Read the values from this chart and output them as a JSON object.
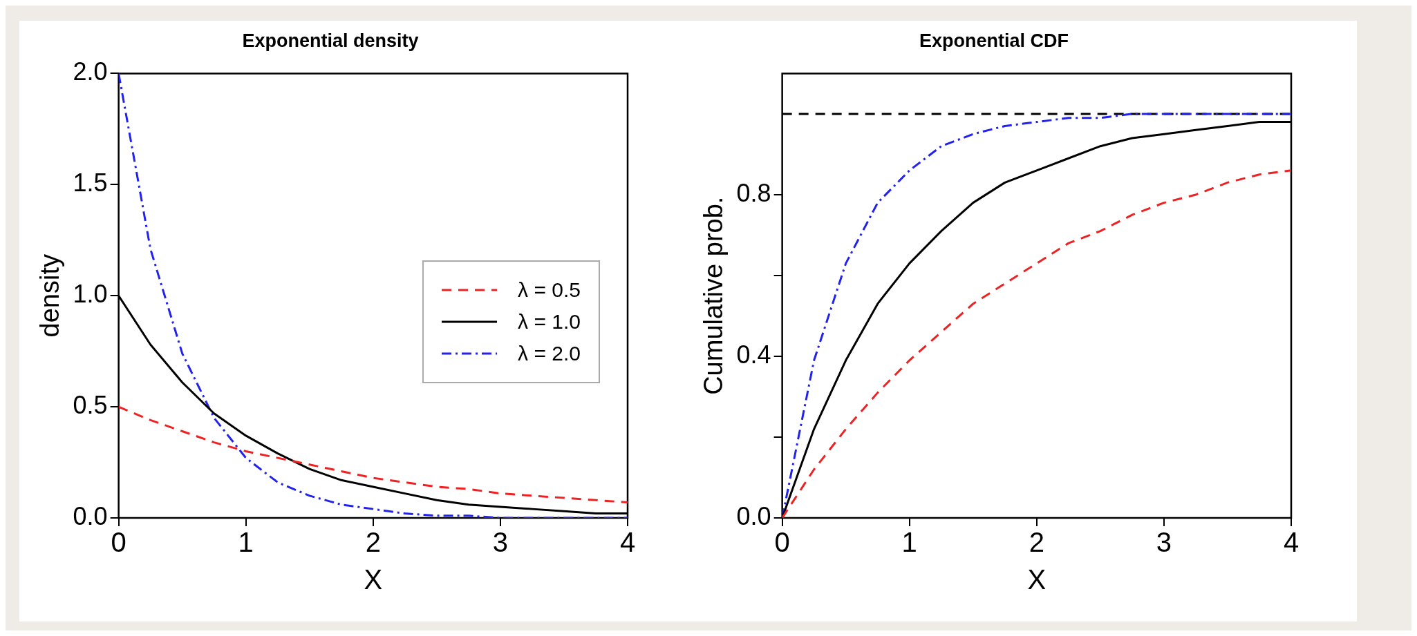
{
  "chart_data": [
    {
      "type": "line",
      "title": "Exponential density",
      "xlabel": "X",
      "ylabel": "density",
      "x": [
        0,
        0.25,
        0.5,
        0.75,
        1,
        1.25,
        1.5,
        1.75,
        2,
        2.25,
        2.5,
        2.75,
        3,
        3.25,
        3.5,
        3.75,
        4
      ],
      "xlim": [
        0,
        4
      ],
      "xticks": [
        0,
        1,
        2,
        3,
        4
      ],
      "ylim": [
        0,
        2
      ],
      "yticks": [
        {
          "value": 0,
          "label": "0.0"
        },
        0.5,
        {
          "value": 1,
          "label": "1.0"
        },
        1.5,
        {
          "value": 2,
          "label": "2.0"
        }
      ],
      "legend": "right",
      "grid": false,
      "marker": "none",
      "series": [
        {
          "name": "λ = 0.5",
          "color": "#ee2222",
          "line_style": "dashed",
          "values": [
            0.5,
            0.44,
            0.39,
            0.34,
            0.3,
            0.27,
            0.24,
            0.21,
            0.18,
            0.16,
            0.14,
            0.13,
            0.11,
            0.1,
            0.09,
            0.08,
            0.07
          ]
        },
        {
          "name": "λ = 1.0",
          "color": "#000000",
          "line_style": "solid",
          "values": [
            1,
            0.78,
            0.61,
            0.47,
            0.37,
            0.29,
            0.22,
            0.17,
            0.14,
            0.11,
            0.08,
            0.06,
            0.05,
            0.04,
            0.03,
            0.02,
            0.02
          ]
        },
        {
          "name": "λ = 2.0",
          "color": "#2222ee",
          "line_style": "dashdot",
          "values": [
            2,
            1.21,
            0.74,
            0.45,
            0.27,
            0.16,
            0.1,
            0.06,
            0.04,
            0.02,
            0.01,
            0.01,
            0,
            0,
            0,
            0,
            0
          ]
        }
      ]
    },
    {
      "type": "line",
      "title": "Exponential CDF",
      "xlabel": "X",
      "ylabel": "Cumulative prob.",
      "x": [
        0,
        0.25,
        0.5,
        0.75,
        1,
        1.25,
        1.5,
        1.75,
        2,
        2.25,
        2.5,
        2.75,
        3,
        3.25,
        3.5,
        3.75,
        4
      ],
      "xlim": [
        0,
        4
      ],
      "xticks": [
        0,
        1,
        2,
        3,
        4
      ],
      "ylim": [
        0,
        1.1
      ],
      "yticks": [
        {
          "value": 0,
          "label": "0.0"
        },
        {
          "value": 0.2,
          "label": null
        },
        0.4,
        {
          "value": 0.6,
          "label": null
        },
        0.8
      ],
      "legend": false,
      "grid": false,
      "marker": "none",
      "ref_lines": [
        {
          "axis": "y",
          "value": 1,
          "color": "#000000",
          "line_style": "dashed"
        }
      ],
      "series": [
        {
          "color": "#ee2222",
          "line_style": "dashed",
          "values": [
            0,
            0.12,
            0.22,
            0.31,
            0.39,
            0.46,
            0.53,
            0.58,
            0.63,
            0.68,
            0.71,
            0.75,
            0.78,
            0.8,
            0.83,
            0.85,
            0.86
          ]
        },
        {
          "color": "#000000",
          "line_style": "solid",
          "values": [
            0,
            0.22,
            0.39,
            0.53,
            0.63,
            0.71,
            0.78,
            0.83,
            0.86,
            0.89,
            0.92,
            0.94,
            0.95,
            0.96,
            0.97,
            0.98,
            0.98
          ]
        },
        {
          "color": "#2222ee",
          "line_style": "dashdot",
          "values": [
            0,
            0.39,
            0.63,
            0.78,
            0.86,
            0.92,
            0.95,
            0.97,
            0.98,
            0.99,
            0.99,
            1,
            1,
            1,
            1,
            1,
            1
          ]
        }
      ]
    }
  ]
}
